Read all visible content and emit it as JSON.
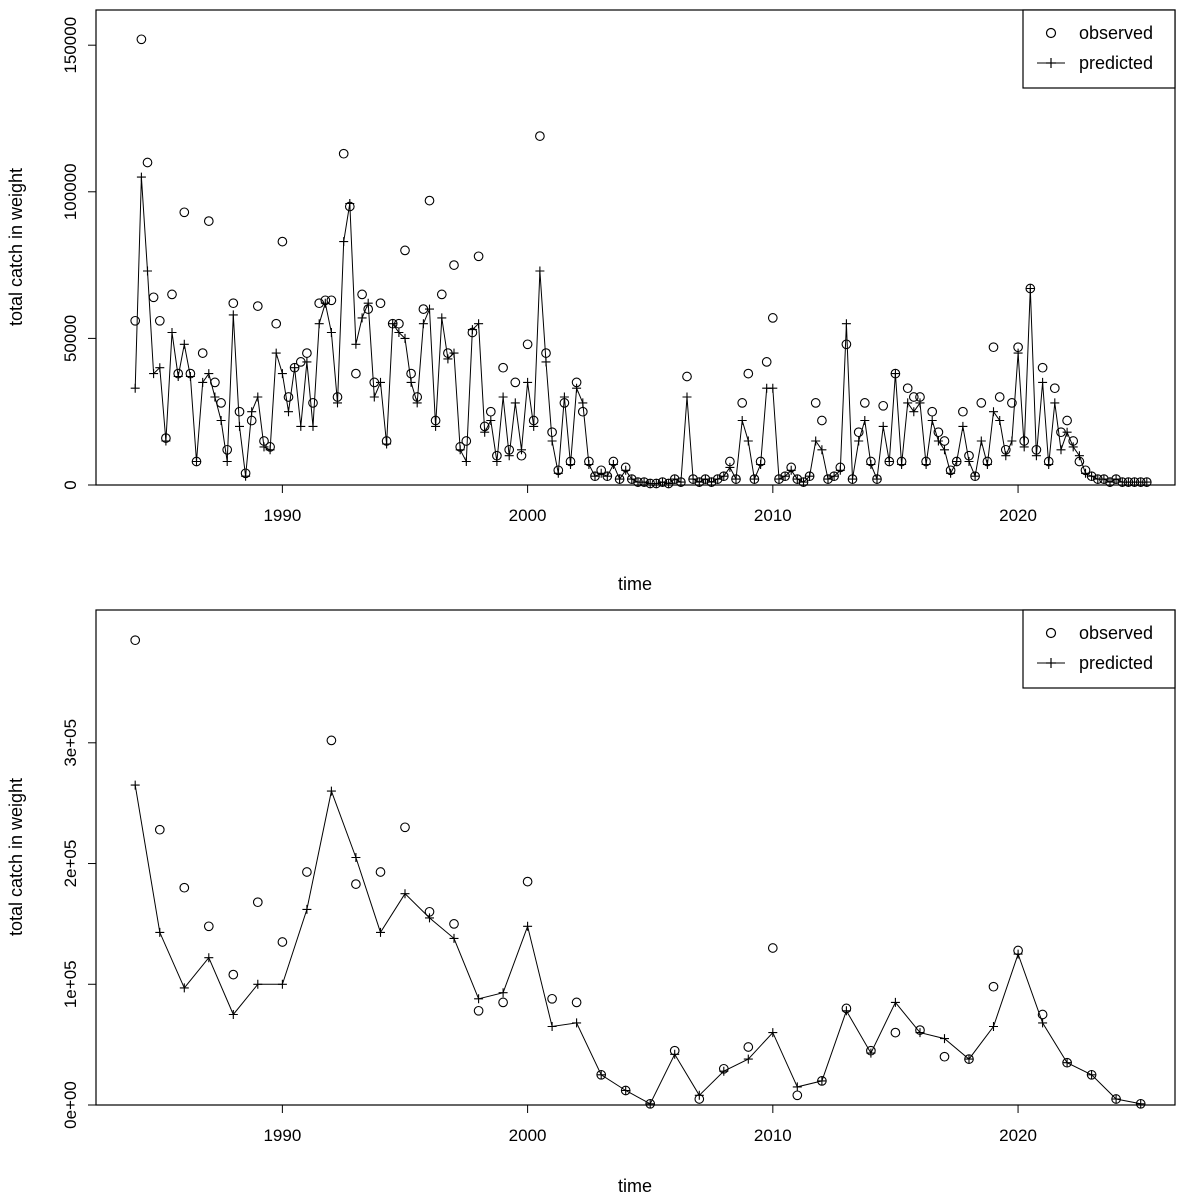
{
  "page": {
    "background": "#ffffff",
    "foreground": "#000000"
  },
  "legend": {
    "observed_label": "observed",
    "predicted_label": "predicted"
  },
  "chart_data": [
    {
      "type": "scatter",
      "title": "",
      "xlabel": "time",
      "ylabel": "total catch in weight",
      "x_start": 1984.0,
      "x_step": 0.25,
      "xlim": [
        1982.4,
        2026.4
      ],
      "ylim": [
        0,
        162000
      ],
      "xticks": [
        1990,
        2000,
        2010,
        2020
      ],
      "xtick_labels": [
        "1990",
        "2000",
        "2010",
        "2020"
      ],
      "yticks": [
        0,
        50000,
        100000,
        150000
      ],
      "ytick_labels": [
        "0",
        "50000",
        "100000",
        "150000"
      ],
      "legend": [
        "observed",
        "predicted"
      ],
      "legend_position": "topright",
      "grid": false,
      "series": [
        {
          "name": "observed",
          "marker": "circle",
          "line": false,
          "values": [
            56000,
            152000,
            110000,
            64000,
            56000,
            16000,
            65000,
            38000,
            93000,
            38000,
            8000,
            45000,
            90000,
            35000,
            28000,
            12000,
            62000,
            25000,
            4000,
            22000,
            61000,
            15000,
            13000,
            55000,
            83000,
            30000,
            40000,
            42000,
            45000,
            28000,
            62000,
            63000,
            63000,
            30000,
            113000,
            95000,
            38000,
            65000,
            60000,
            35000,
            62000,
            15000,
            55000,
            55000,
            80000,
            38000,
            30000,
            60000,
            97000,
            22000,
            65000,
            45000,
            75000,
            13000,
            15000,
            52000,
            78000,
            20000,
            25000,
            10000,
            40000,
            12000,
            35000,
            10000,
            48000,
            22000,
            119000,
            45000,
            18000,
            5000,
            28000,
            8000,
            35000,
            25000,
            8000,
            3000,
            5000,
            3000,
            8000,
            2000,
            6000,
            2000,
            1000,
            1000,
            500,
            500,
            1000,
            500,
            2000,
            1000,
            37000,
            2000,
            1000,
            2000,
            1000,
            2000,
            3000,
            8000,
            2000,
            28000,
            38000,
            2000,
            8000,
            42000,
            57000,
            2000,
            3000,
            6000,
            2000,
            1000,
            3000,
            28000,
            22000,
            2000,
            3000,
            6000,
            48000,
            2000,
            18000,
            28000,
            8000,
            2000,
            27000,
            8000,
            38000,
            8000,
            33000,
            30000,
            30000,
            8000,
            25000,
            18000,
            15000,
            5000,
            8000,
            25000,
            10000,
            3000,
            28000,
            8000,
            47000,
            30000,
            12000,
            28000,
            47000,
            15000,
            67000,
            12000,
            40000,
            8000,
            33000,
            18000,
            22000,
            15000,
            8000,
            5000,
            3000,
            2000,
            2000,
            1000,
            2000,
            1000,
            1000,
            1000,
            1000,
            1000
          ]
        },
        {
          "name": "predicted",
          "marker": "plus",
          "line": true,
          "values": [
            33000,
            105000,
            73000,
            38000,
            40000,
            15000,
            52000,
            37000,
            48000,
            37000,
            8000,
            35000,
            38000,
            30000,
            22000,
            8000,
            58000,
            20000,
            3000,
            25000,
            30000,
            13000,
            12000,
            45000,
            38000,
            25000,
            40000,
            20000,
            42000,
            20000,
            55000,
            62000,
            52000,
            28000,
            83000,
            96000,
            48000,
            57000,
            62000,
            30000,
            35000,
            14000,
            55000,
            52000,
            50000,
            35000,
            28000,
            55000,
            60000,
            20000,
            57000,
            43000,
            45000,
            12000,
            8000,
            53000,
            55000,
            18000,
            22000,
            8000,
            30000,
            10000,
            28000,
            12000,
            35000,
            20000,
            73000,
            42000,
            15000,
            4000,
            30000,
            7000,
            33000,
            28000,
            7000,
            3000,
            4000,
            3000,
            7000,
            2000,
            5000,
            2000,
            1000,
            1000,
            500,
            500,
            1000,
            500,
            2000,
            1000,
            30000,
            2000,
            1000,
            2000,
            1000,
            2000,
            3000,
            6000,
            2000,
            22000,
            15000,
            2000,
            7000,
            33000,
            33000,
            2000,
            3000,
            5000,
            2000,
            1000,
            3000,
            15000,
            12000,
            2000,
            3000,
            5000,
            55000,
            2000,
            15000,
            22000,
            7000,
            2000,
            20000,
            8000,
            38000,
            7000,
            28000,
            25000,
            28000,
            7000,
            22000,
            15000,
            12000,
            4000,
            8000,
            20000,
            8000,
            3000,
            15000,
            7000,
            25000,
            22000,
            10000,
            15000,
            45000,
            13000,
            67000,
            10000,
            35000,
            7000,
            28000,
            12000,
            18000,
            13000,
            10000,
            4000,
            3000,
            2000,
            2000,
            1000,
            2000,
            1000,
            1000,
            1000,
            1000,
            1000
          ]
        }
      ]
    },
    {
      "type": "scatter",
      "title": "",
      "xlabel": "time",
      "ylabel": "total catch in weight",
      "x_start": 1984,
      "x_step": 1,
      "xlim": [
        1982.4,
        2026.4
      ],
      "ylim": [
        0,
        410000
      ],
      "xticks": [
        1990,
        2000,
        2010,
        2020
      ],
      "xtick_labels": [
        "1990",
        "2000",
        "2010",
        "2020"
      ],
      "yticks": [
        0,
        100000,
        200000,
        300000
      ],
      "ytick_labels": [
        "0e+00",
        "1e+05",
        "2e+05",
        "3e+05"
      ],
      "legend": [
        "observed",
        "predicted"
      ],
      "legend_position": "topright",
      "grid": false,
      "series": [
        {
          "name": "observed",
          "marker": "circle",
          "line": false,
          "values": [
            385000,
            228000,
            180000,
            148000,
            108000,
            168000,
            135000,
            193000,
            302000,
            183000,
            193000,
            230000,
            160000,
            150000,
            78000,
            85000,
            185000,
            88000,
            85000,
            25000,
            12000,
            1000,
            45000,
            5000,
            30000,
            48000,
            130000,
            8000,
            20000,
            80000,
            45000,
            60000,
            62000,
            40000,
            38000,
            98000,
            128000,
            75000,
            35000,
            25000,
            5000,
            1000
          ]
        },
        {
          "name": "predicted",
          "marker": "plus",
          "line": true,
          "values": [
            265000,
            143000,
            97000,
            122000,
            75000,
            100000,
            100000,
            162000,
            260000,
            205000,
            143000,
            175000,
            155000,
            138000,
            88000,
            93000,
            148000,
            65000,
            68000,
            25000,
            12000,
            1000,
            42000,
            8000,
            28000,
            38000,
            60000,
            15000,
            20000,
            78000,
            43000,
            85000,
            60000,
            55000,
            38000,
            65000,
            125000,
            68000,
            35000,
            25000,
            5000,
            1000
          ]
        }
      ]
    }
  ]
}
